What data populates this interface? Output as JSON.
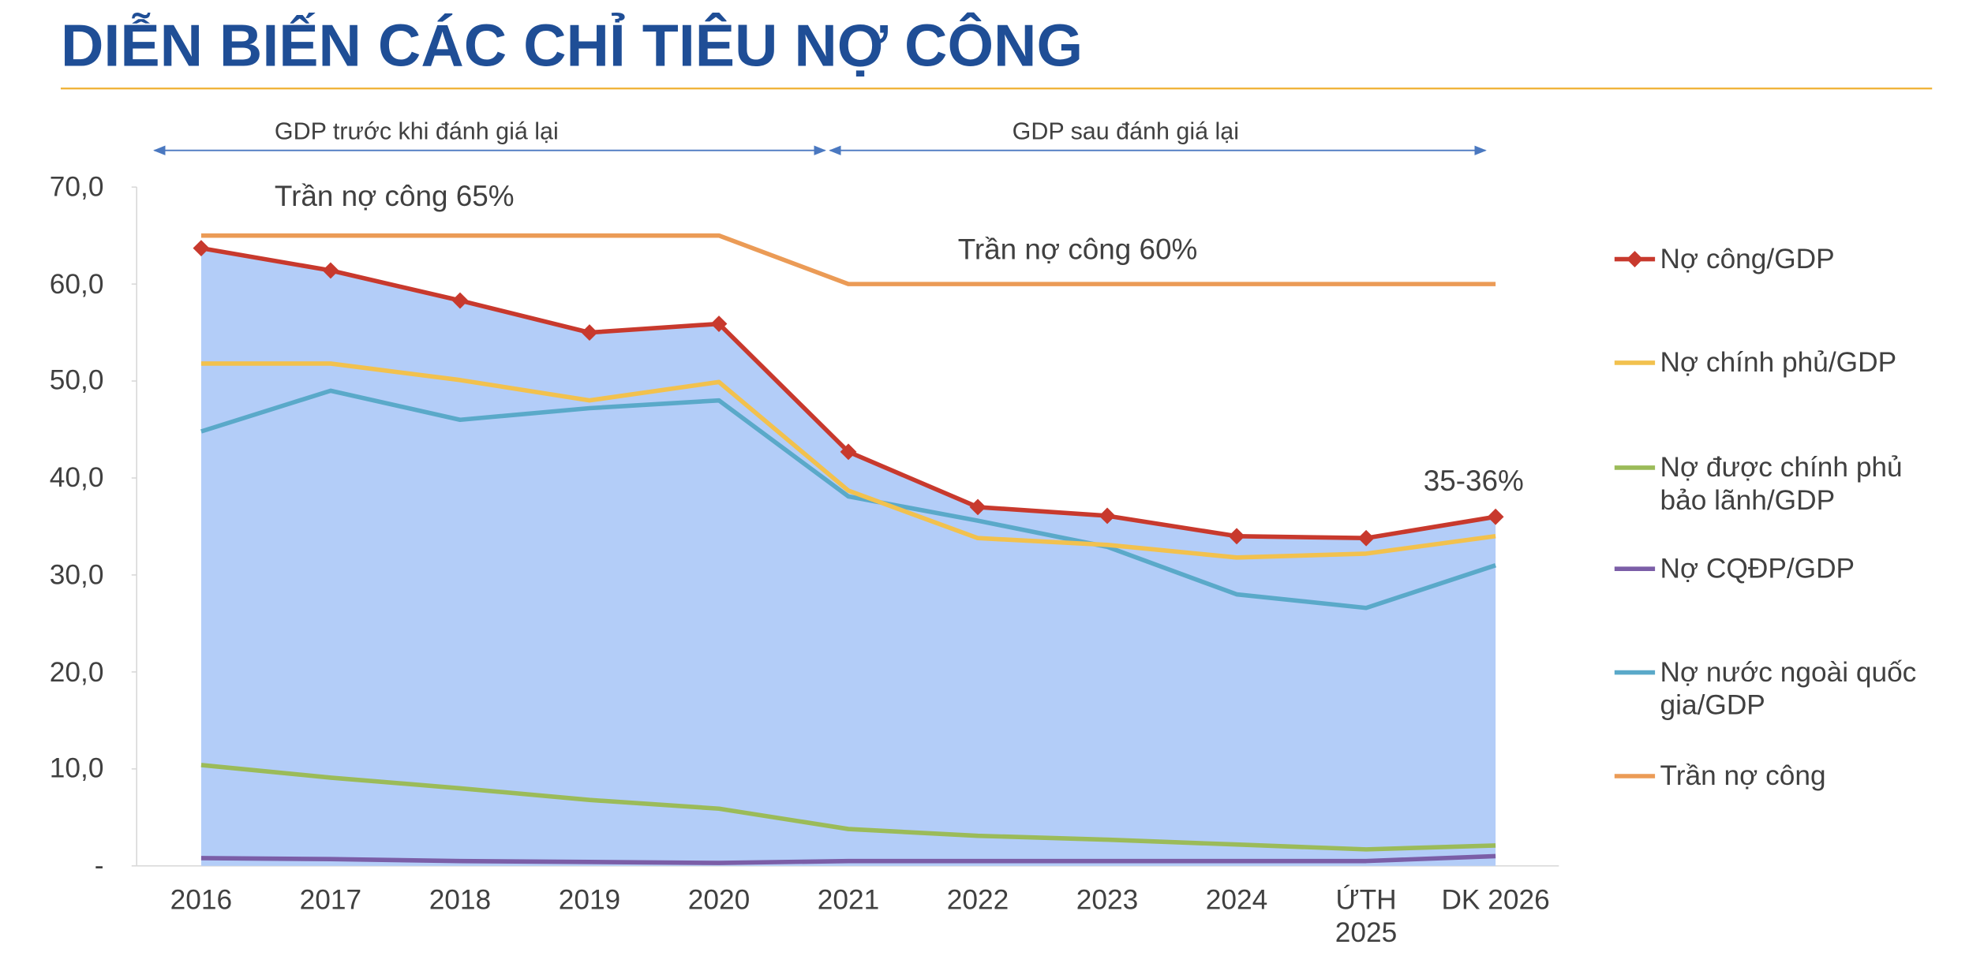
{
  "chart_data": {
    "type": "line",
    "title": "DIỄN BIẾN CÁC CHỈ TIÊU NỢ CÔNG",
    "annotations": [
      "GDP trước khi đánh giá lại",
      "GDP sau đánh giá lại",
      "Trần nợ công 65%",
      "Trần nợ công 60%",
      "35-36%"
    ],
    "categories": [
      "2016",
      "2017",
      "2018",
      "2019",
      "2020",
      "2021",
      "2022",
      "2023",
      "2024",
      "ỨTH\n2025",
      "DK 2026"
    ],
    "series": [
      {
        "name": "Nợ công/GDP",
        "color": "#c8392d",
        "values": [
          63.7,
          61.4,
          58.3,
          55.0,
          55.9,
          42.7,
          37.0,
          36.1,
          34.0,
          33.8,
          36.0
        ]
      },
      {
        "name": "Nợ chính phủ/GDP",
        "color": "#f2c14e",
        "values": [
          51.8,
          51.8,
          50.1,
          48.0,
          49.9,
          38.7,
          33.8,
          33.1,
          31.8,
          32.2,
          34.0
        ]
      },
      {
        "name": "Nợ được chính phủ bảo lãnh/GDP",
        "color": "#9bbb59",
        "values": [
          10.4,
          9.1,
          8.0,
          6.8,
          5.9,
          3.8,
          3.1,
          2.7,
          2.2,
          1.7,
          2.1
        ]
      },
      {
        "name": "Nợ CQĐP/GDP",
        "color": "#7b5ea7",
        "values": [
          0.8,
          0.7,
          0.5,
          0.4,
          0.3,
          0.5,
          0.5,
          0.5,
          0.5,
          0.5,
          1.0
        ]
      },
      {
        "name": "Nợ nước ngoài quốc gia/GDP",
        "color": "#5aa9c9",
        "values": [
          44.8,
          49.0,
          46.0,
          47.2,
          48.0,
          38.1,
          35.6,
          32.9,
          28.0,
          26.6,
          31.0
        ]
      },
      {
        "name": "Trần nợ công",
        "color": "#eb9b56",
        "values": [
          65,
          65,
          65,
          65,
          65,
          60,
          60,
          60,
          60,
          60,
          60
        ]
      }
    ],
    "area_color": "#b3cdf8",
    "ylim": [
      0,
      70
    ],
    "yticks": [
      {
        "value": 0,
        "label": "-"
      },
      {
        "value": 10,
        "label": "10,0"
      },
      {
        "value": 20,
        "label": "20,0"
      },
      {
        "value": 30,
        "label": "30,0"
      },
      {
        "value": 40,
        "label": "40,0"
      },
      {
        "value": 50,
        "label": "50,0"
      },
      {
        "value": 60,
        "label": "60,0"
      },
      {
        "value": 70,
        "label": "70,0"
      }
    ],
    "legend": "right"
  }
}
